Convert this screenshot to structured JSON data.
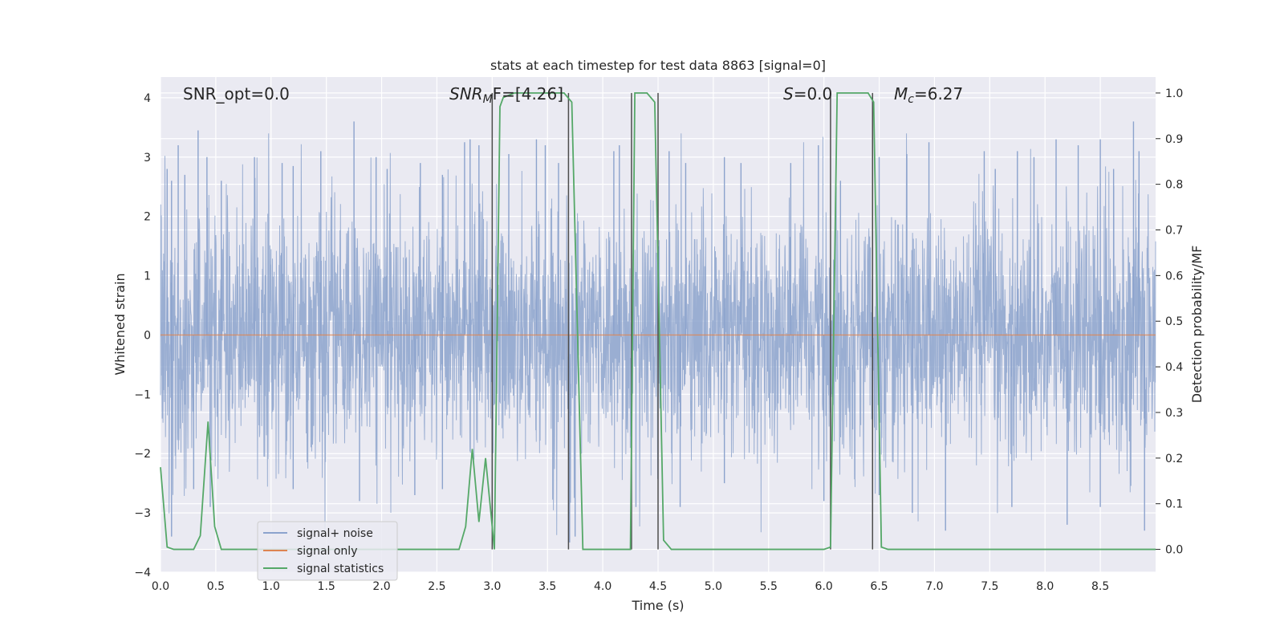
{
  "chart_data": {
    "type": "line",
    "title": "stats at each timestep for test data 8863 [signal=0]",
    "xlabel": "Time (s)",
    "ylabel": "Whitened strain",
    "y2label": "Detection probability/MF",
    "xlim": [
      0,
      9.0
    ],
    "ylim": [
      -4,
      4.35
    ],
    "y2lim": [
      -0.05,
      1.035
    ],
    "x_ticks": [
      0.0,
      0.5,
      1.0,
      1.5,
      2.0,
      2.5,
      3.0,
      3.5,
      4.0,
      4.5,
      5.0,
      5.5,
      6.0,
      6.5,
      7.0,
      7.5,
      8.0,
      8.5
    ],
    "x_tick_labels": [
      "0.0",
      "0.5",
      "1.0",
      "1.5",
      "2.0",
      "2.5",
      "3.0",
      "3.5",
      "4.0",
      "4.5",
      "5.0",
      "5.5",
      "6.0",
      "6.5",
      "7.0",
      "7.5",
      "8.0",
      "8.5"
    ],
    "y_ticks": [
      -4,
      -3,
      -2,
      -1,
      0,
      1,
      2,
      3,
      4
    ],
    "y_tick_labels": [
      "−4",
      "−3",
      "−2",
      "−1",
      "0",
      "1",
      "2",
      "3",
      "4"
    ],
    "y2_ticks": [
      0.0,
      0.1,
      0.2,
      0.3,
      0.4,
      0.5,
      0.6,
      0.7,
      0.8,
      0.9,
      1.0
    ],
    "y2_tick_labels": [
      "0.0",
      "0.1",
      "0.2",
      "0.3",
      "0.4",
      "0.5",
      "0.6",
      "0.7",
      "0.8",
      "0.9",
      "1.0"
    ],
    "grid": true,
    "legend_position": "lower-left",
    "annotations": {
      "snr_opt": "SNR_opt=0.0",
      "snr_mf_main": "SNR",
      "snr_mf_sub": "M",
      "snr_mf_rest": "F=[4.26]",
      "s_main": "S",
      "s_rest": "=0.0",
      "mc_main": "M",
      "mc_sub": "c",
      "mc_rest": "=6.27"
    },
    "series": [
      {
        "name": "signal+ noise",
        "color": "#8ca3cd",
        "axis": "left",
        "note_shape": "dense whitened noise envelope",
        "envelope_peaks": {
          "x": [
            0.06,
            0.1,
            0.16,
            0.22,
            0.34,
            0.42,
            0.55,
            0.85,
            1.1,
            1.2,
            1.45,
            1.75,
            1.95,
            2.05,
            2.35,
            2.55,
            2.75,
            2.8,
            2.88,
            3.15,
            3.4,
            3.48,
            3.6,
            4.1,
            4.15,
            4.6,
            4.75,
            5.1,
            5.25,
            5.7,
            5.95,
            6.15,
            6.5,
            6.75,
            6.95,
            7.45,
            7.55,
            7.75,
            7.9,
            8.1,
            8.3,
            8.5,
            8.62,
            8.8,
            8.85
          ],
          "y": [
            2.8,
            2.6,
            3.2,
            2.7,
            3.45,
            3.0,
            2.6,
            3.0,
            2.9,
            2.85,
            3.1,
            3.6,
            3.0,
            2.8,
            2.9,
            2.7,
            3.25,
            3.3,
            3.2,
            3.05,
            3.3,
            3.2,
            2.9,
            3.1,
            3.2,
            3.1,
            2.9,
            3.0,
            2.9,
            2.9,
            3.2,
            2.6,
            3.0,
            3.05,
            3.25,
            3.1,
            2.8,
            3.1,
            3.0,
            3.3,
            3.2,
            3.3,
            2.8,
            3.6,
            3.1
          ]
        },
        "envelope_troughs": {
          "x": [
            0.1,
            0.3,
            0.45,
            1.2,
            1.8,
            2.3,
            2.55,
            3.0,
            3.7,
            3.75,
            4.3,
            4.7,
            5.1,
            6.0,
            6.5,
            6.8,
            7.1,
            7.7,
            8.2,
            8.5,
            8.9
          ],
          "y": [
            -3.4,
            -2.6,
            -2.9,
            -2.6,
            -2.8,
            -2.7,
            -2.6,
            -2.8,
            -3.5,
            -3.4,
            -2.9,
            -2.9,
            -2.5,
            -2.8,
            -2.7,
            -3.0,
            -3.3,
            -2.9,
            -3.2,
            -2.9,
            -3.3
          ]
        }
      },
      {
        "name": "signal only",
        "color": "#dd8452",
        "axis": "left",
        "x": [
          0,
          9.0
        ],
        "y": [
          0,
          0
        ]
      },
      {
        "name": "signal statistics",
        "color": "#55a868",
        "axis": "right",
        "x": [
          0.0,
          0.06,
          0.12,
          0.3,
          0.36,
          0.43,
          0.49,
          0.55,
          2.7,
          2.76,
          2.82,
          2.88,
          2.94,
          3.02,
          3.07,
          3.1,
          3.2,
          3.6,
          3.65,
          3.72,
          3.82,
          3.88,
          4.25,
          4.29,
          4.4,
          4.47,
          4.55,
          4.62,
          6.0,
          6.06,
          6.12,
          6.18,
          6.4,
          6.45,
          6.52,
          6.58,
          9.0
        ],
        "y": [
          0.18,
          0.005,
          0.0,
          0.0,
          0.03,
          0.28,
          0.05,
          0.0,
          0.0,
          0.05,
          0.22,
          0.06,
          0.2,
          0.0,
          0.97,
          0.99,
          1.0,
          1.0,
          1.0,
          0.98,
          0.0,
          0.0,
          0.0,
          1.0,
          1.0,
          0.98,
          0.02,
          0.0,
          0.0,
          0.005,
          1.0,
          1.0,
          1.0,
          0.98,
          0.005,
          0.0,
          0.0
        ]
      }
    ],
    "vertical_lines": {
      "color": "#4d4d4d",
      "x": [
        3.0,
        3.69,
        4.26,
        4.5,
        6.06,
        6.44
      ],
      "ymin": 0.0,
      "ymax": 1.0
    }
  }
}
